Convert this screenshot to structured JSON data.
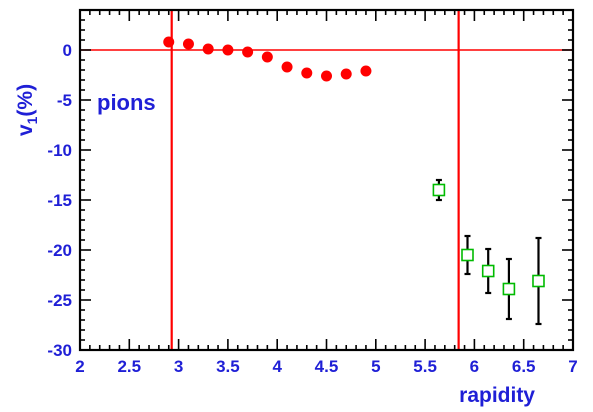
{
  "chart_data": {
    "type": "scatter",
    "title": "",
    "xlabel": "rapidity",
    "ylabel_main": "v",
    "ylabel_sub": "1",
    "ylabel_unit": "(%)",
    "xlim": [
      2,
      7
    ],
    "ylim": [
      -30,
      4
    ],
    "x_ticks": [
      2,
      2.5,
      3,
      3.5,
      4,
      4.5,
      5,
      5.5,
      6,
      6.5,
      7
    ],
    "x_tick_labels": [
      "2",
      "2.5",
      "3",
      "3.5",
      "4",
      "4.5",
      "5",
      "5.5",
      "6",
      "6.5",
      "7"
    ],
    "y_ticks": [
      0,
      -5,
      -10,
      -15,
      -20,
      -25,
      -30
    ],
    "y_tick_labels": [
      "0",
      "-5",
      "-10",
      "-15",
      "-20",
      "-25",
      "-30"
    ],
    "annotation": "pions",
    "reference_lines": {
      "horizontal_y": 0,
      "vertical_x": [
        2.93,
        5.84
      ]
    },
    "series": [
      {
        "marker": "filled-circle",
        "color": "#ff0000",
        "x": [
          2.9,
          3.1,
          3.3,
          3.5,
          3.7,
          3.9,
          4.1,
          4.3,
          4.5,
          4.7,
          4.9
        ],
        "y": [
          0.8,
          0.6,
          0.1,
          0.0,
          -0.2,
          -0.7,
          -1.7,
          -2.3,
          -2.6,
          -2.4,
          -2.1
        ],
        "err": [
          0,
          0,
          0,
          0,
          0,
          0,
          0,
          0,
          0,
          0,
          0
        ]
      },
      {
        "marker": "open-square",
        "color": "#00bb00",
        "x": [
          5.64,
          5.93,
          6.14,
          6.35,
          6.65
        ],
        "y": [
          -14.0,
          -20.5,
          -22.1,
          -23.9,
          -23.1
        ],
        "err": [
          1.0,
          1.9,
          2.2,
          3.0,
          4.3
        ]
      }
    ],
    "colors": {
      "frame": "#000000",
      "labels": "#1f1fd6",
      "reference_lines": "#ff0000",
      "errorbars": "#000000"
    }
  }
}
